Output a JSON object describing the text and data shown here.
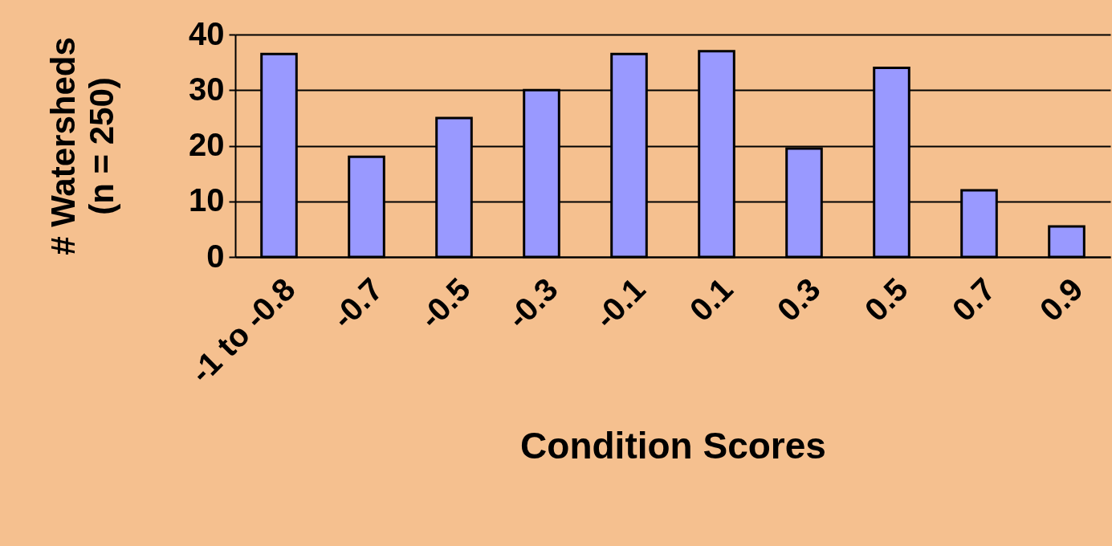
{
  "chart_data": {
    "type": "bar",
    "xlabel": "Condition Scores",
    "ylabel": "# Watersheds\n(n = 250)",
    "categories": [
      "-1 to -0.8",
      "-0.7",
      "-0.5",
      "-0.3",
      "-0.1",
      "0.1",
      "0.3",
      "0.5",
      "0.7",
      "0.9"
    ],
    "values": [
      36.5,
      18,
      25,
      30,
      36.5,
      37,
      19.5,
      34,
      12,
      5.5
    ],
    "color": "#9999ff",
    "ylim": [
      0,
      40
    ],
    "yticks": [
      0,
      10,
      20,
      30,
      40
    ],
    "grid": "y"
  }
}
